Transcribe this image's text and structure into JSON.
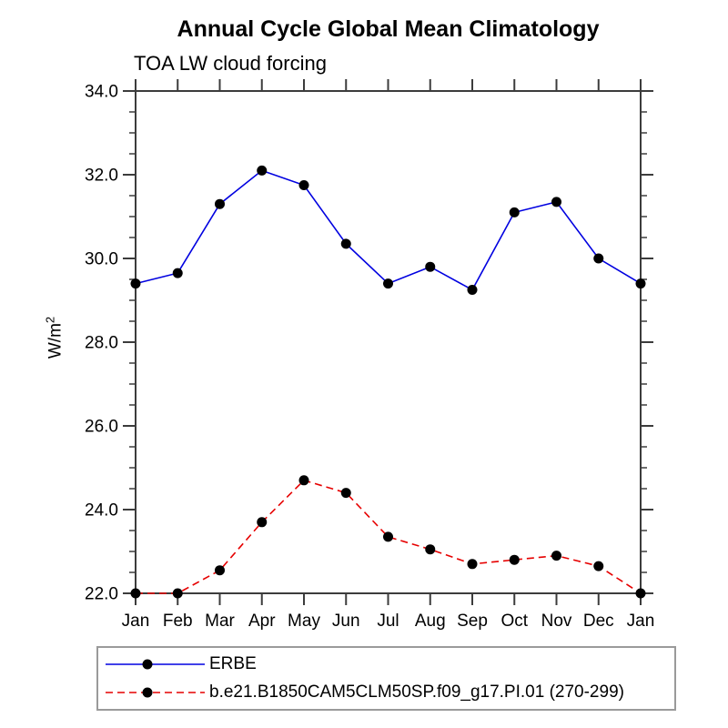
{
  "chart_data": {
    "type": "line",
    "title": "Annual Cycle Global Mean Climatology",
    "subtitle": "TOA LW cloud forcing",
    "ylabel": "W/m²",
    "ylabel_base": "W/m",
    "ylabel_exponent": "2",
    "categories": [
      "Jan",
      "Feb",
      "Mar",
      "Apr",
      "May",
      "Jun",
      "Jul",
      "Aug",
      "Sep",
      "Oct",
      "Nov",
      "Dec",
      "Jan"
    ],
    "series": [
      {
        "name": "ERBE",
        "line_style": "solid",
        "color": "#0000e0",
        "marker": "filled-black-circle",
        "values": [
          29.4,
          29.65,
          31.3,
          32.1,
          31.75,
          30.35,
          29.4,
          29.8,
          29.25,
          31.1,
          31.35,
          30.0,
          29.4
        ]
      },
      {
        "name": "b.e21.B1850CAM5CLM50SP.f09_g17.PI.01 (270-299)",
        "line_style": "dashed",
        "color": "#e60000",
        "marker": "filled-black-circle",
        "values": [
          22.0,
          22.0,
          22.55,
          23.7,
          24.7,
          24.4,
          23.35,
          23.05,
          22.7,
          22.8,
          22.9,
          22.65,
          22.0
        ]
      }
    ],
    "ylim": [
      22.0,
      34.0
    ],
    "ytick_interval": 2.0,
    "yminor_interval": 0.5,
    "ytick_labels": [
      "22.0",
      "24.0",
      "26.0",
      "28.0",
      "30.0",
      "32.0",
      "34.0"
    ],
    "grid": false,
    "legend_position": "bottom-left-box",
    "marker_color": "#000000",
    "axis_color": "#3c3c3c",
    "text_color": "#000000"
  }
}
